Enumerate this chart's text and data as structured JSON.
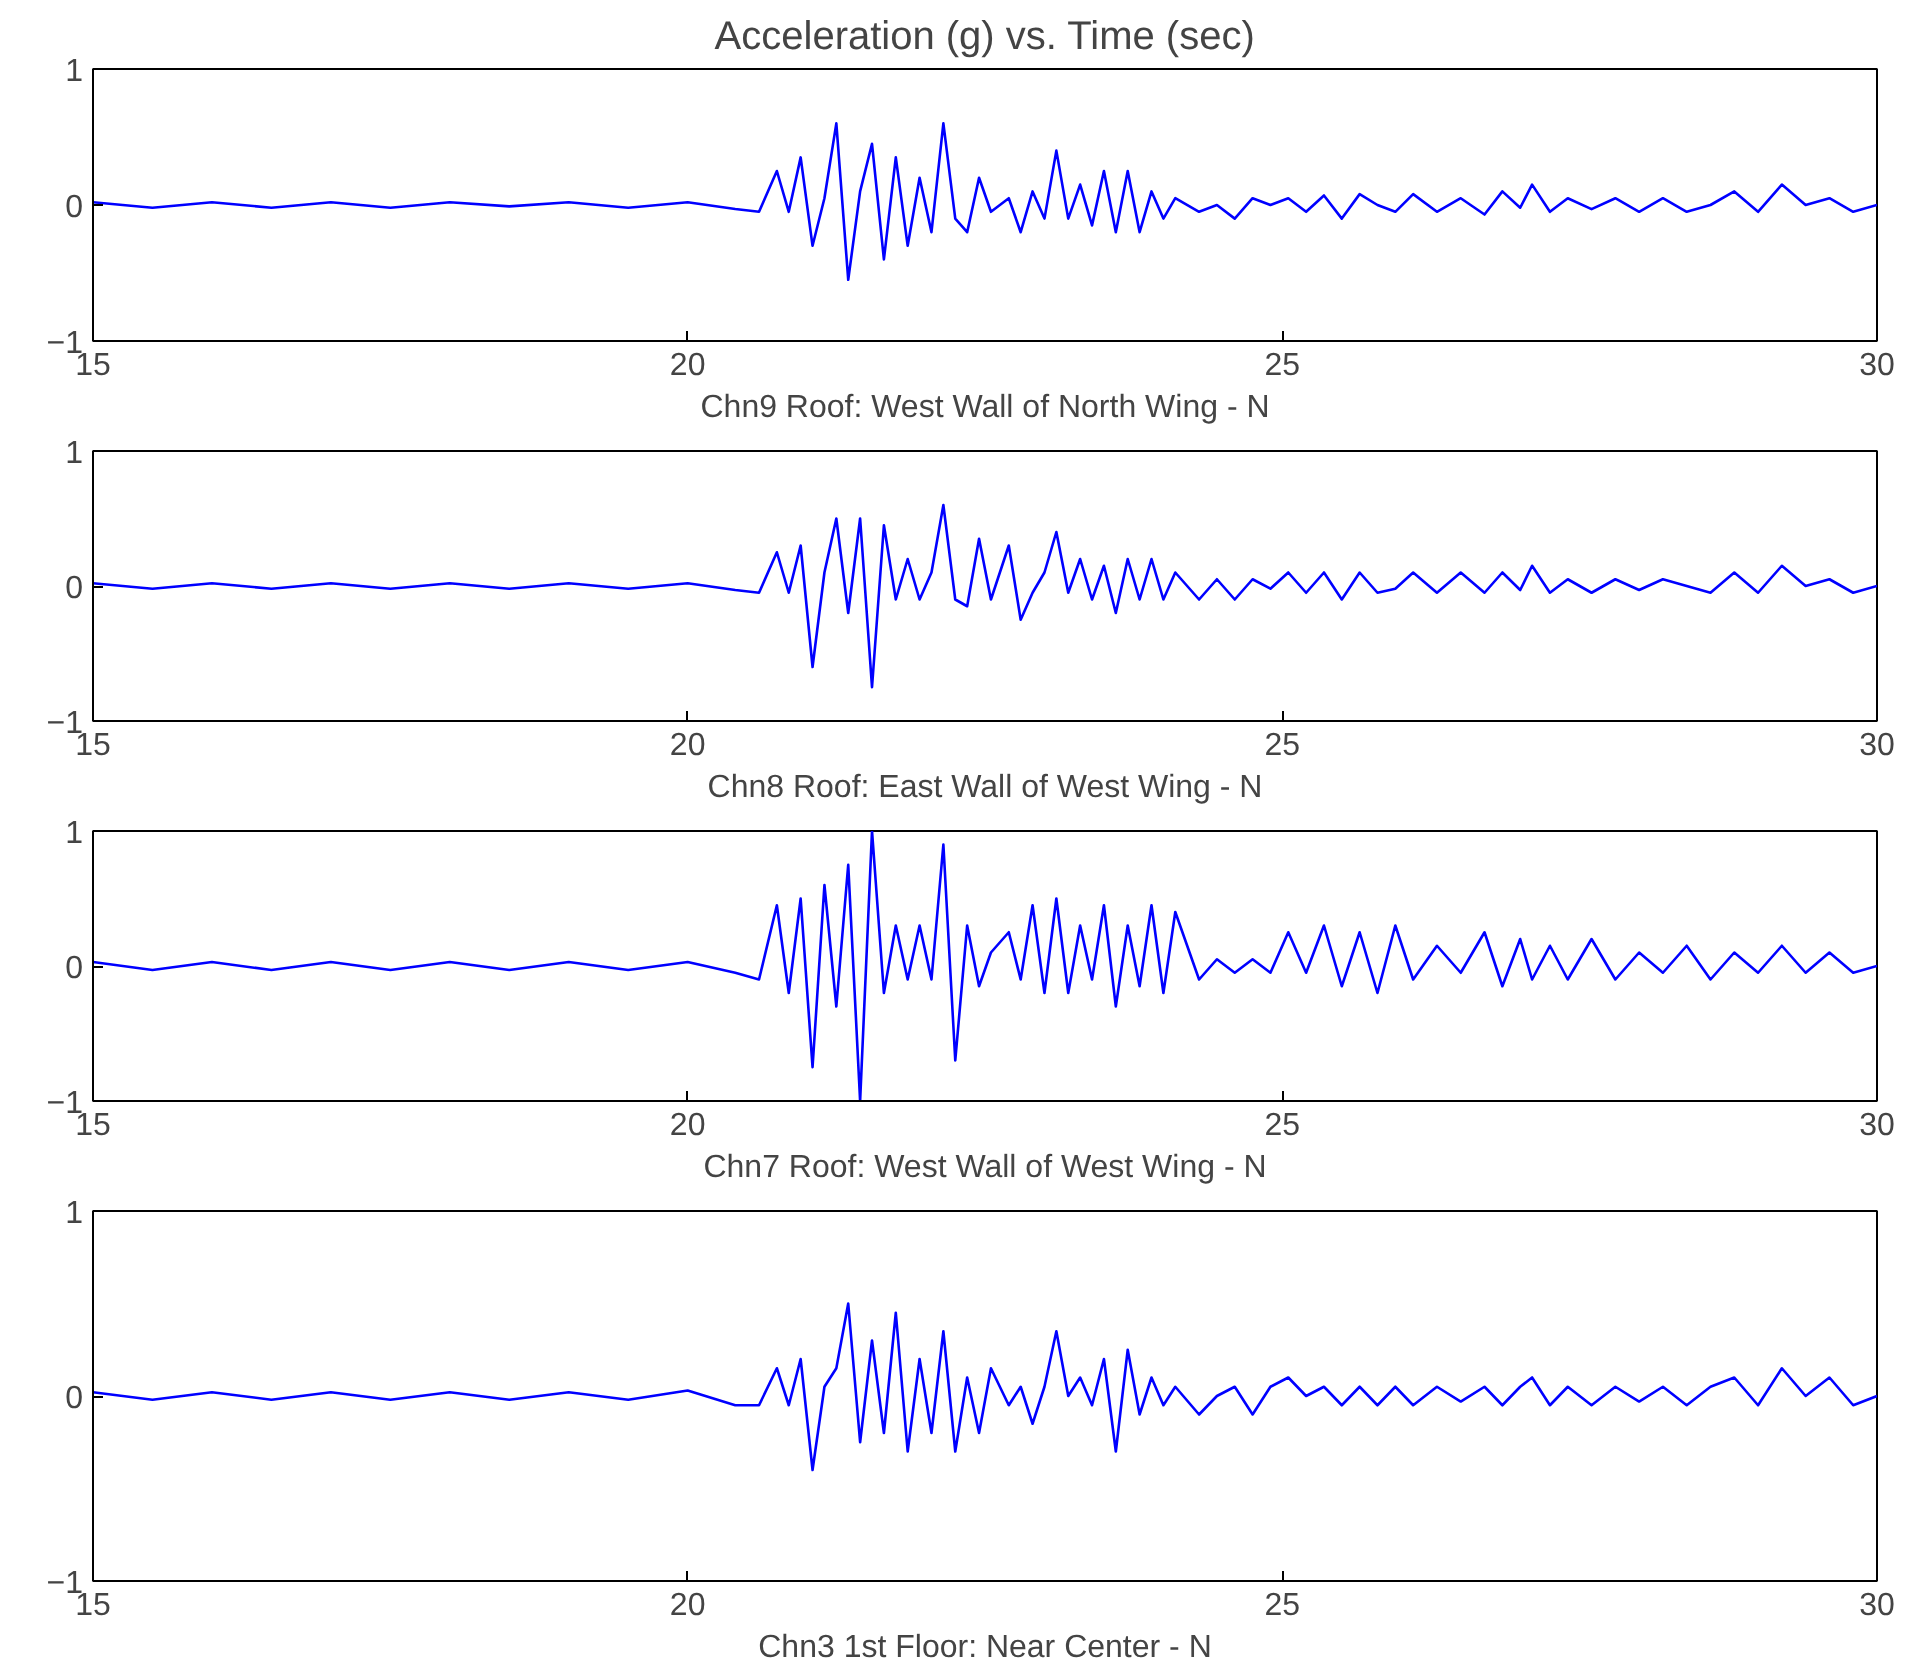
{
  "chart_data": [
    {
      "type": "line",
      "title": "Acceleration (g) vs. Time (sec)",
      "xlabel": "Chn9 Roof: West Wall of North Wing - N",
      "xlim": [
        15,
        30
      ],
      "ylim": [
        -1,
        1
      ],
      "xticks": [
        15,
        20,
        25,
        30
      ],
      "yticks": [
        -1,
        0,
        1
      ],
      "x": [
        15.0,
        15.5,
        16.0,
        16.5,
        17.0,
        17.5,
        18.0,
        18.5,
        19.0,
        19.5,
        20.0,
        20.4,
        20.6,
        20.75,
        20.85,
        20.95,
        21.05,
        21.15,
        21.25,
        21.35,
        21.45,
        21.55,
        21.65,
        21.75,
        21.85,
        21.95,
        22.05,
        22.15,
        22.25,
        22.35,
        22.45,
        22.55,
        22.7,
        22.8,
        22.9,
        23.0,
        23.1,
        23.2,
        23.3,
        23.4,
        23.5,
        23.6,
        23.7,
        23.8,
        23.9,
        24.0,
        24.1,
        24.3,
        24.45,
        24.6,
        24.75,
        24.9,
        25.05,
        25.2,
        25.35,
        25.5,
        25.65,
        25.8,
        25.95,
        26.1,
        26.3,
        26.5,
        26.7,
        26.85,
        27.0,
        27.1,
        27.25,
        27.4,
        27.6,
        27.8,
        28.0,
        28.2,
        28.4,
        28.6,
        28.8,
        29.0,
        29.2,
        29.4,
        29.6,
        29.8,
        30.0
      ],
      "series": [
        {
          "color": "#0000ff",
          "values": [
            0.02,
            -0.02,
            0.02,
            -0.02,
            0.02,
            -0.02,
            0.02,
            -0.01,
            0.02,
            -0.02,
            0.02,
            -0.03,
            -0.05,
            0.25,
            -0.05,
            0.35,
            -0.3,
            0.05,
            0.6,
            -0.55,
            0.1,
            0.45,
            -0.4,
            0.35,
            -0.3,
            0.2,
            -0.2,
            0.6,
            -0.1,
            -0.2,
            0.2,
            -0.05,
            0.05,
            -0.2,
            0.1,
            -0.1,
            0.4,
            -0.1,
            0.15,
            -0.15,
            0.25,
            -0.2,
            0.25,
            -0.2,
            0.1,
            -0.1,
            0.05,
            -0.05,
            0.0,
            -0.1,
            0.05,
            0.0,
            0.05,
            -0.05,
            0.07,
            -0.1,
            0.08,
            0.0,
            -0.05,
            0.08,
            -0.05,
            0.05,
            -0.07,
            0.1,
            -0.02,
            0.15,
            -0.05,
            0.05,
            -0.03,
            0.05,
            -0.05,
            0.05,
            -0.05,
            0.0,
            0.1,
            -0.05,
            0.15,
            0.0,
            0.05,
            -0.05,
            0.0
          ]
        }
      ]
    },
    {
      "type": "line",
      "xlabel": "Chn8 Roof: East Wall of West Wing - N",
      "xlim": [
        15,
        30
      ],
      "ylim": [
        -1,
        1
      ],
      "xticks": [
        15,
        20,
        25,
        30
      ],
      "yticks": [
        -1,
        0,
        1
      ],
      "x": [
        15.0,
        15.5,
        16.0,
        16.5,
        17.0,
        17.5,
        18.0,
        18.5,
        19.0,
        19.5,
        20.0,
        20.4,
        20.6,
        20.75,
        20.85,
        20.95,
        21.05,
        21.15,
        21.25,
        21.35,
        21.45,
        21.55,
        21.65,
        21.75,
        21.85,
        21.95,
        22.05,
        22.15,
        22.25,
        22.35,
        22.45,
        22.55,
        22.7,
        22.8,
        22.9,
        23.0,
        23.1,
        23.2,
        23.3,
        23.4,
        23.5,
        23.6,
        23.7,
        23.8,
        23.9,
        24.0,
        24.1,
        24.3,
        24.45,
        24.6,
        24.75,
        24.9,
        25.05,
        25.2,
        25.35,
        25.5,
        25.65,
        25.8,
        25.95,
        26.1,
        26.3,
        26.5,
        26.7,
        26.85,
        27.0,
        27.1,
        27.25,
        27.4,
        27.6,
        27.8,
        28.0,
        28.2,
        28.4,
        28.6,
        28.8,
        29.0,
        29.2,
        29.4,
        29.6,
        29.8,
        30.0
      ],
      "series": [
        {
          "color": "#0000ff",
          "values": [
            0.02,
            -0.02,
            0.02,
            -0.02,
            0.02,
            -0.02,
            0.02,
            -0.02,
            0.02,
            -0.02,
            0.02,
            -0.03,
            -0.05,
            0.25,
            -0.05,
            0.3,
            -0.6,
            0.1,
            0.5,
            -0.2,
            0.5,
            -0.75,
            0.45,
            -0.1,
            0.2,
            -0.1,
            0.1,
            0.6,
            -0.1,
            -0.15,
            0.35,
            -0.1,
            0.3,
            -0.25,
            -0.05,
            0.1,
            0.4,
            -0.05,
            0.2,
            -0.1,
            0.15,
            -0.2,
            0.2,
            -0.1,
            0.2,
            -0.1,
            0.1,
            -0.1,
            0.05,
            -0.1,
            0.05,
            -0.02,
            0.1,
            -0.05,
            0.1,
            -0.1,
            0.1,
            -0.05,
            -0.02,
            0.1,
            -0.05,
            0.1,
            -0.05,
            0.1,
            -0.03,
            0.15,
            -0.05,
            0.05,
            -0.05,
            0.05,
            -0.03,
            0.05,
            0.0,
            -0.05,
            0.1,
            -0.05,
            0.15,
            0.0,
            0.05,
            -0.05,
            0.0
          ]
        }
      ]
    },
    {
      "type": "line",
      "xlabel": "Chn7 Roof: West Wall of West Wing - N",
      "xlim": [
        15,
        30
      ],
      "ylim": [
        -1,
        1
      ],
      "xticks": [
        15,
        20,
        25,
        30
      ],
      "yticks": [
        -1,
        0,
        1
      ],
      "x": [
        15.0,
        15.5,
        16.0,
        16.5,
        17.0,
        17.5,
        18.0,
        18.5,
        19.0,
        19.5,
        20.0,
        20.4,
        20.6,
        20.75,
        20.85,
        20.95,
        21.05,
        21.15,
        21.25,
        21.35,
        21.45,
        21.55,
        21.65,
        21.75,
        21.85,
        21.95,
        22.05,
        22.15,
        22.25,
        22.35,
        22.45,
        22.55,
        22.7,
        22.8,
        22.9,
        23.0,
        23.1,
        23.2,
        23.3,
        23.4,
        23.5,
        23.6,
        23.7,
        23.8,
        23.9,
        24.0,
        24.1,
        24.3,
        24.45,
        24.6,
        24.75,
        24.9,
        25.05,
        25.2,
        25.35,
        25.5,
        25.65,
        25.8,
        25.95,
        26.1,
        26.3,
        26.5,
        26.7,
        26.85,
        27.0,
        27.1,
        27.25,
        27.4,
        27.6,
        27.8,
        28.0,
        28.2,
        28.4,
        28.6,
        28.8,
        29.0,
        29.2,
        29.4,
        29.6,
        29.8,
        30.0
      ],
      "series": [
        {
          "color": "#0000ff",
          "values": [
            0.03,
            -0.03,
            0.03,
            -0.03,
            0.03,
            -0.03,
            0.03,
            -0.03,
            0.03,
            -0.03,
            0.03,
            -0.05,
            -0.1,
            0.45,
            -0.2,
            0.5,
            -0.75,
            0.6,
            -0.3,
            0.75,
            -1.0,
            1.0,
            -0.2,
            0.3,
            -0.1,
            0.3,
            -0.1,
            0.9,
            -0.7,
            0.3,
            -0.15,
            0.1,
            0.25,
            -0.1,
            0.45,
            -0.2,
            0.5,
            -0.2,
            0.3,
            -0.1,
            0.45,
            -0.3,
            0.3,
            -0.15,
            0.45,
            -0.2,
            0.4,
            -0.1,
            0.05,
            -0.05,
            0.05,
            -0.05,
            0.25,
            -0.05,
            0.3,
            -0.15,
            0.25,
            -0.2,
            0.3,
            -0.1,
            0.15,
            -0.05,
            0.25,
            -0.15,
            0.2,
            -0.1,
            0.15,
            -0.1,
            0.2,
            -0.1,
            0.1,
            -0.05,
            0.15,
            -0.1,
            0.1,
            -0.05,
            0.15,
            -0.05,
            0.1,
            -0.05,
            0.0
          ]
        }
      ]
    },
    {
      "type": "line",
      "xlabel": "Chn3 1st Floor: Near Center - N",
      "xlim": [
        15,
        30
      ],
      "ylim": [
        -1,
        1
      ],
      "xticks": [
        15,
        20,
        25,
        30
      ],
      "yticks": [
        -1,
        0,
        1
      ],
      "x": [
        15.0,
        15.5,
        16.0,
        16.5,
        17.0,
        17.5,
        18.0,
        18.5,
        19.0,
        19.5,
        20.0,
        20.4,
        20.6,
        20.75,
        20.85,
        20.95,
        21.05,
        21.15,
        21.25,
        21.35,
        21.45,
        21.55,
        21.65,
        21.75,
        21.85,
        21.95,
        22.05,
        22.15,
        22.25,
        22.35,
        22.45,
        22.55,
        22.7,
        22.8,
        22.9,
        23.0,
        23.1,
        23.2,
        23.3,
        23.4,
        23.5,
        23.6,
        23.7,
        23.8,
        23.9,
        24.0,
        24.1,
        24.3,
        24.45,
        24.6,
        24.75,
        24.9,
        25.05,
        25.2,
        25.35,
        25.5,
        25.65,
        25.8,
        25.95,
        26.1,
        26.3,
        26.5,
        26.7,
        26.85,
        27.0,
        27.1,
        27.25,
        27.4,
        27.6,
        27.8,
        28.0,
        28.2,
        28.4,
        28.6,
        28.8,
        29.0,
        29.2,
        29.4,
        29.6,
        29.8,
        30.0
      ],
      "series": [
        {
          "color": "#0000ff",
          "values": [
            0.02,
            -0.02,
            0.02,
            -0.02,
            0.02,
            -0.02,
            0.02,
            -0.02,
            0.02,
            -0.02,
            0.03,
            -0.05,
            -0.05,
            0.15,
            -0.05,
            0.2,
            -0.4,
            0.05,
            0.15,
            0.5,
            -0.25,
            0.3,
            -0.2,
            0.45,
            -0.3,
            0.2,
            -0.2,
            0.35,
            -0.3,
            0.1,
            -0.2,
            0.15,
            -0.05,
            0.05,
            -0.15,
            0.05,
            0.35,
            0.0,
            0.1,
            -0.05,
            0.2,
            -0.3,
            0.25,
            -0.1,
            0.1,
            -0.05,
            0.05,
            -0.1,
            0.0,
            0.05,
            -0.1,
            0.05,
            0.1,
            0.0,
            0.05,
            -0.05,
            0.05,
            -0.05,
            0.05,
            -0.05,
            0.05,
            -0.03,
            0.05,
            -0.05,
            0.05,
            0.1,
            -0.05,
            0.05,
            -0.05,
            0.05,
            -0.03,
            0.05,
            -0.05,
            0.05,
            0.1,
            -0.05,
            0.15,
            0.0,
            0.1,
            -0.05,
            0.0
          ]
        }
      ]
    }
  ]
}
